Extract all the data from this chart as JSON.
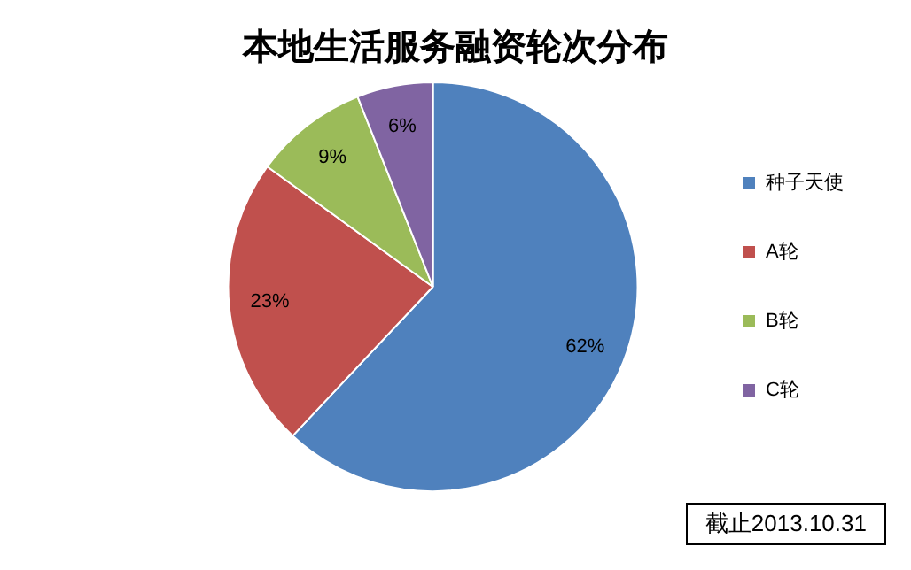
{
  "chart_data": {
    "type": "pie",
    "title": "本地生活服务融资轮次分布",
    "categories": [
      "种子天使",
      "A轮",
      "B轮",
      "C轮"
    ],
    "values": [
      62,
      23,
      9,
      6
    ],
    "colors": [
      "#4f81bd",
      "#c0504d",
      "#9bbb59",
      "#8064a2"
    ],
    "value_labels": [
      "62%",
      "23%",
      "9%",
      "6%"
    ],
    "legend": "right",
    "annotations": [
      "截止2013.10.31"
    ]
  }
}
